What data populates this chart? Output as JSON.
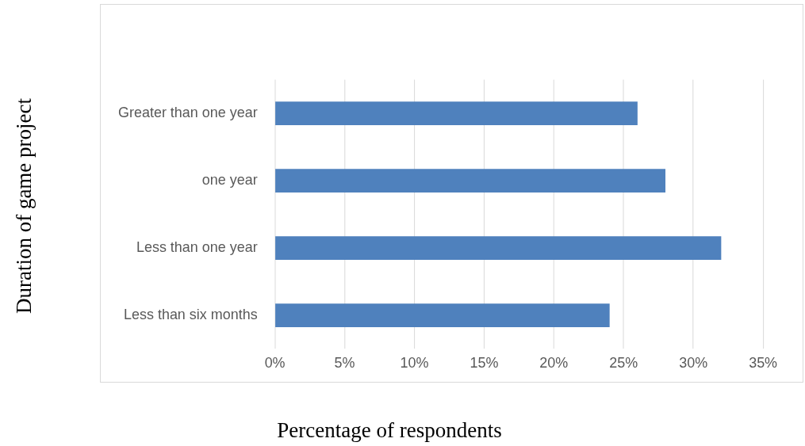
{
  "chart_data": {
    "type": "bar",
    "orientation": "horizontal",
    "xlabel": "Percentage of respondents",
    "ylabel": "Duration of game project",
    "categories": [
      "Greater than one year",
      "one year",
      "Less than one year",
      "Less than six months"
    ],
    "values": [
      26,
      28,
      32,
      24
    ],
    "color": "#4f81bd",
    "xlim": [
      0,
      35
    ],
    "xticks": [
      {
        "value": 0,
        "label": "0%"
      },
      {
        "value": 5,
        "label": "5%"
      },
      {
        "value": 10,
        "label": "10%"
      },
      {
        "value": 15,
        "label": "15%"
      },
      {
        "value": 20,
        "label": "20%"
      },
      {
        "value": 25,
        "label": "25%"
      },
      {
        "value": 30,
        "label": "30%"
      },
      {
        "value": 35,
        "label": "35%"
      }
    ],
    "grid": "x",
    "legend": false
  }
}
